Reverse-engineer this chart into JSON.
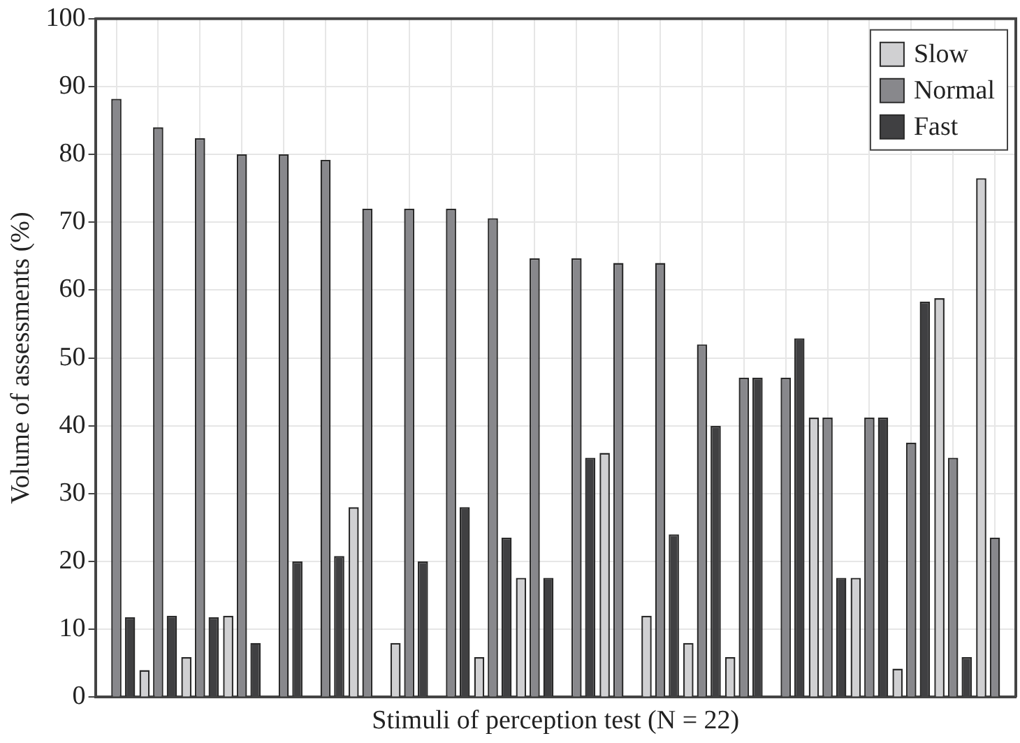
{
  "chart_data": {
    "type": "bar",
    "xlabel": "Stimuli of perception test (N = 22)",
    "ylabel": "Volume of assessments (%)",
    "categories": [
      null,
      null,
      null,
      null,
      null,
      null,
      null,
      null,
      null,
      null,
      null,
      null,
      null,
      null,
      null,
      null,
      null,
      null,
      null,
      null,
      null,
      null
    ],
    "series": [
      {
        "name": "Slow",
        "color": "#d0d0d2",
        "values": [
          0,
          4,
          5.9,
          12,
          0,
          0,
          28,
          8,
          0,
          5.9,
          17.6,
          0,
          36,
          12,
          8,
          5.9,
          0,
          41.2,
          17.6,
          4.2,
          58.8,
          76.5
        ]
      },
      {
        "name": "Normal",
        "color": "#88888c",
        "values": [
          88.2,
          84,
          82.4,
          80,
          80,
          79.2,
          72,
          72,
          72,
          70.6,
          64.7,
          64.7,
          64,
          64,
          52,
          47.1,
          47.1,
          41.2,
          41.2,
          37.5,
          35.3,
          23.5
        ]
      },
      {
        "name": "Fast",
        "color": "#404042",
        "values": [
          11.8,
          12,
          11.8,
          8,
          20,
          20.8,
          0,
          20,
          28,
          23.5,
          17.6,
          35.3,
          0,
          24,
          40,
          47.1,
          52.9,
          17.6,
          41.2,
          58.3,
          5.9,
          0
        ]
      }
    ],
    "ylim": [
      0,
      100
    ],
    "yticks": [
      0,
      10,
      20,
      30,
      40,
      50,
      60,
      70,
      80,
      90,
      100
    ],
    "grid": true,
    "legend": "top right"
  }
}
